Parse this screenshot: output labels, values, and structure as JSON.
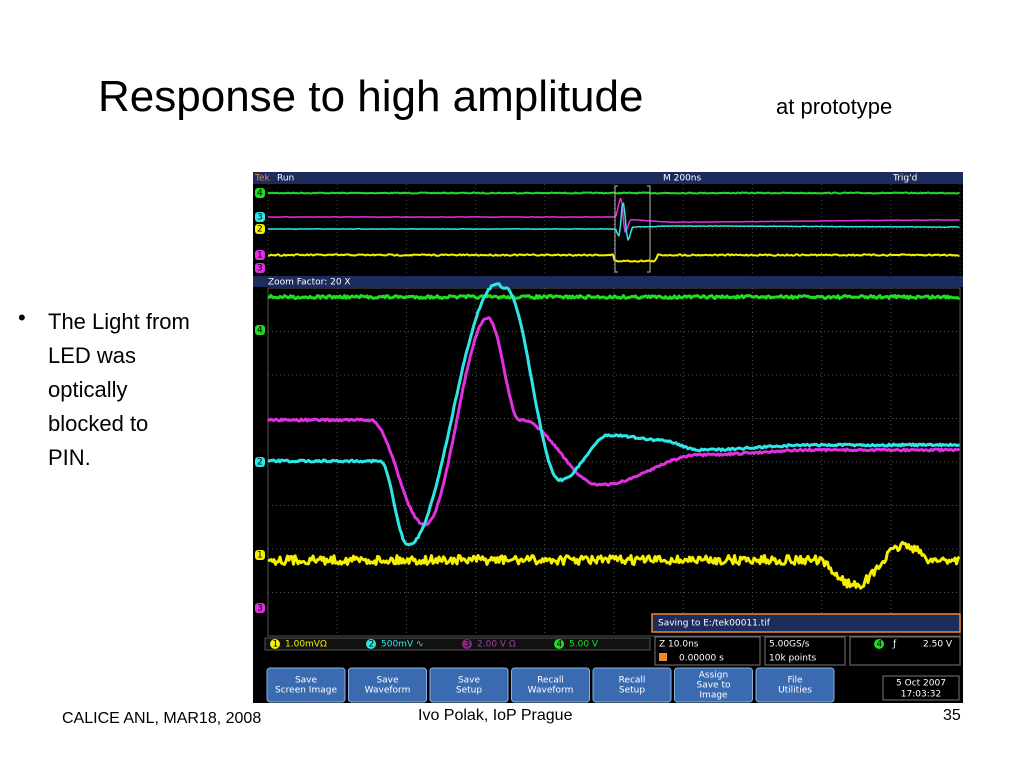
{
  "title": "Response to high amplitude",
  "subtitle": "at prototype",
  "bullets": [
    "The Light from LED was optically blocked to PIN."
  ],
  "footer": {
    "left": "CALICE ANL, MAR18, 2008",
    "center": "Ivo Polak, IoP Prague",
    "right": "35"
  },
  "scope": {
    "top_bar": {
      "brand": "Tek",
      "status": "Run",
      "timebase": "M 200ns",
      "trigger": "Trig'd"
    },
    "zoom_label": "Zoom Factor: 20 X",
    "saving": "Saving to E:/tek00011.tif",
    "channels": [
      {
        "num": "1",
        "scale": "1.00mVΩ"
      },
      {
        "num": "2",
        "scale": "500mV ∿"
      },
      {
        "num": "3",
        "scale": "2.00 V Ω"
      },
      {
        "num": "4",
        "scale": "5.00 V"
      }
    ],
    "horizontal": {
      "zoom": "Z 10.0ns",
      "position": "0.00000 s"
    },
    "acquisition": {
      "rate": "5.00GS/s",
      "points": "10k points"
    },
    "trigger_readout": {
      "channel": "4",
      "slope": "ƒ",
      "level": "2.50 V"
    },
    "buttons": [
      [
        "Save",
        "Screen Image"
      ],
      [
        "Save",
        "Waveform"
      ],
      [
        "Save",
        "Setup"
      ],
      [
        "Recall",
        "Waveform"
      ],
      [
        "Recall",
        "Setup"
      ],
      [
        "Assign",
        "Save to",
        "Image"
      ],
      [
        "File",
        "Utilities"
      ]
    ],
    "datetime": {
      "date": "5 Oct  2007",
      "time": "17:03:32"
    }
  }
}
